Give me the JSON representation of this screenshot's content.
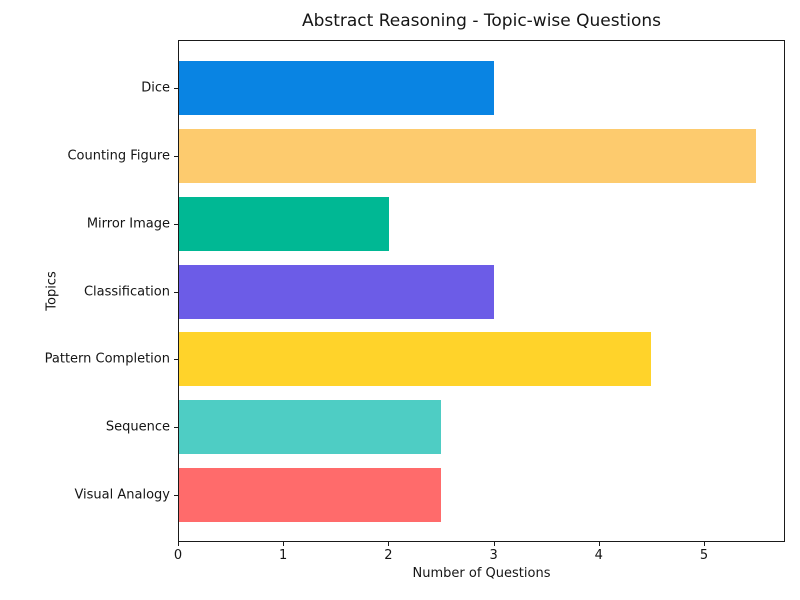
{
  "chart_data": {
    "type": "bar",
    "orientation": "horizontal",
    "title": "Abstract Reasoning - Topic-wise Questions",
    "xlabel": "Number of Questions",
    "ylabel": "Topics",
    "categories": [
      "Dice",
      "Counting Figure",
      "Mirror Image",
      "Classification",
      "Pattern Completion",
      "Sequence",
      "Visual Analogy"
    ],
    "values": [
      3.0,
      5.5,
      2.0,
      3.0,
      4.5,
      2.5,
      2.5
    ],
    "bar_colors": [
      "#0984e3",
      "#fdcb6e",
      "#00b894",
      "#6c5ce7",
      "#ffd32a",
      "#4ecdc4",
      "#ff6b6b"
    ],
    "xlim": [
      0,
      5.77
    ],
    "x_ticks": [
      "0",
      "1",
      "2",
      "3",
      "4",
      "5"
    ],
    "grid": false,
    "legend": null,
    "background": "#ffffff",
    "text_color": "#151515"
  }
}
